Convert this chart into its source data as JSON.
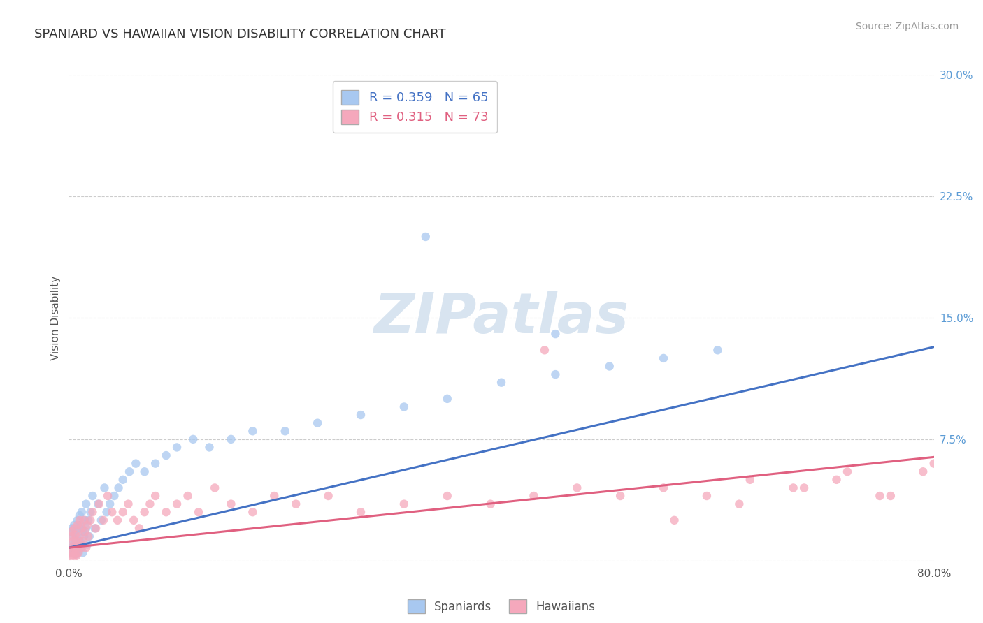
{
  "title": "SPANIARD VS HAWAIIAN VISION DISABILITY CORRELATION CHART",
  "source_text": "Source: ZipAtlas.com",
  "ylabel": "Vision Disability",
  "spaniard_R": 0.359,
  "spaniard_N": 65,
  "hawaiian_R": 0.315,
  "hawaiian_N": 73,
  "spaniard_color": "#a8c8f0",
  "hawaiian_color": "#f5a8bc",
  "trend_spaniard_color": "#4472c4",
  "trend_hawaiian_color": "#e06080",
  "background_color": "#ffffff",
  "watermark_color": "#d8e4f0",
  "legend_label_spaniard": "Spaniards",
  "legend_label_hawaiian": "Hawaiians",
  "xlim": [
    0.0,
    0.8
  ],
  "ylim": [
    0.0,
    0.3
  ],
  "y_tick_positions": [
    0.0,
    0.075,
    0.15,
    0.225,
    0.3
  ],
  "y_tick_labels": [
    "",
    "7.5%",
    "15.0%",
    "22.5%",
    "30.0%"
  ],
  "x_tick_positions": [
    0.0,
    0.8
  ],
  "x_tick_labels": [
    "0.0%",
    "80.0%"
  ],
  "title_fontsize": 13,
  "axis_label_fontsize": 11,
  "tick_fontsize": 11,
  "source_fontsize": 10,
  "spaniard_x": [
    0.001,
    0.002,
    0.002,
    0.003,
    0.003,
    0.004,
    0.004,
    0.005,
    0.005,
    0.006,
    0.006,
    0.007,
    0.007,
    0.008,
    0.008,
    0.009,
    0.009,
    0.01,
    0.01,
    0.011,
    0.011,
    0.012,
    0.012,
    0.013,
    0.013,
    0.014,
    0.015,
    0.016,
    0.016,
    0.017,
    0.018,
    0.019,
    0.02,
    0.022,
    0.024,
    0.027,
    0.03,
    0.033,
    0.035,
    0.038,
    0.042,
    0.046,
    0.05,
    0.056,
    0.062,
    0.07,
    0.08,
    0.09,
    0.1,
    0.115,
    0.13,
    0.15,
    0.17,
    0.2,
    0.23,
    0.27,
    0.31,
    0.35,
    0.4,
    0.45,
    0.5,
    0.55,
    0.6,
    0.33,
    0.45
  ],
  "spaniard_y": [
    0.005,
    0.01,
    0.018,
    0.008,
    0.02,
    0.005,
    0.015,
    0.01,
    0.022,
    0.006,
    0.018,
    0.004,
    0.015,
    0.01,
    0.025,
    0.006,
    0.02,
    0.012,
    0.028,
    0.008,
    0.022,
    0.01,
    0.03,
    0.005,
    0.018,
    0.015,
    0.025,
    0.02,
    0.035,
    0.01,
    0.025,
    0.015,
    0.03,
    0.04,
    0.02,
    0.035,
    0.025,
    0.045,
    0.03,
    0.035,
    0.04,
    0.045,
    0.05,
    0.055,
    0.06,
    0.055,
    0.06,
    0.065,
    0.07,
    0.075,
    0.07,
    0.075,
    0.08,
    0.08,
    0.085,
    0.09,
    0.095,
    0.1,
    0.11,
    0.115,
    0.12,
    0.125,
    0.13,
    0.2,
    0.14
  ],
  "hawaiian_x": [
    0.001,
    0.002,
    0.002,
    0.003,
    0.003,
    0.004,
    0.004,
    0.005,
    0.005,
    0.006,
    0.006,
    0.007,
    0.007,
    0.008,
    0.008,
    0.009,
    0.01,
    0.01,
    0.011,
    0.012,
    0.012,
    0.013,
    0.014,
    0.015,
    0.016,
    0.017,
    0.018,
    0.02,
    0.022,
    0.025,
    0.028,
    0.032,
    0.036,
    0.04,
    0.045,
    0.05,
    0.055,
    0.06,
    0.065,
    0.07,
    0.075,
    0.08,
    0.09,
    0.1,
    0.11,
    0.12,
    0.135,
    0.15,
    0.17,
    0.19,
    0.21,
    0.24,
    0.27,
    0.31,
    0.35,
    0.39,
    0.43,
    0.47,
    0.51,
    0.55,
    0.59,
    0.63,
    0.67,
    0.71,
    0.75,
    0.79,
    0.44,
    0.56,
    0.62,
    0.68,
    0.72,
    0.76,
    0.8
  ],
  "hawaiian_y": [
    0.003,
    0.008,
    0.015,
    0.005,
    0.018,
    0.003,
    0.012,
    0.008,
    0.02,
    0.004,
    0.016,
    0.003,
    0.012,
    0.008,
    0.022,
    0.005,
    0.015,
    0.025,
    0.01,
    0.008,
    0.02,
    0.012,
    0.025,
    0.018,
    0.008,
    0.022,
    0.015,
    0.025,
    0.03,
    0.02,
    0.035,
    0.025,
    0.04,
    0.03,
    0.025,
    0.03,
    0.035,
    0.025,
    0.02,
    0.03,
    0.035,
    0.04,
    0.03,
    0.035,
    0.04,
    0.03,
    0.045,
    0.035,
    0.03,
    0.04,
    0.035,
    0.04,
    0.03,
    0.035,
    0.04,
    0.035,
    0.04,
    0.045,
    0.04,
    0.045,
    0.04,
    0.05,
    0.045,
    0.05,
    0.04,
    0.055,
    0.13,
    0.025,
    0.035,
    0.045,
    0.055,
    0.04,
    0.06
  ]
}
